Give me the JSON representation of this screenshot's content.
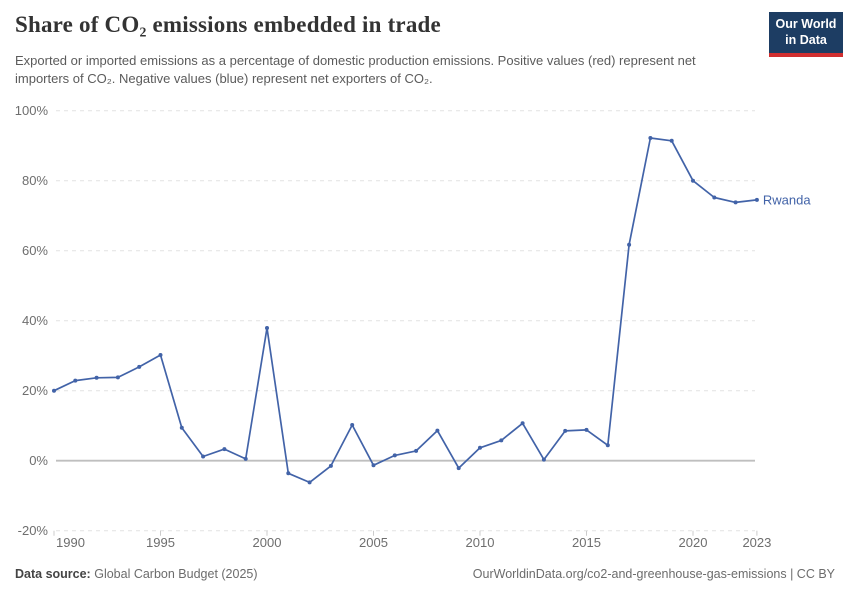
{
  "header": {
    "title": "Share of CO₂ emissions embedded in trade",
    "subtitle": "Exported or imported emissions as a percentage of domestic production emissions. Positive values (red) represent net importers of CO₂. Negative values (blue) represent net exporters of CO₂.",
    "logo_line1": "Our World",
    "logo_line2": "in Data"
  },
  "chart_data": {
    "type": "line",
    "title": "Share of CO₂ emissions embedded in trade",
    "x": [
      1990,
      1991,
      1992,
      1993,
      1994,
      1995,
      1996,
      1997,
      1998,
      1999,
      2000,
      2001,
      2002,
      2003,
      2004,
      2005,
      2006,
      2007,
      2008,
      2009,
      2010,
      2011,
      2012,
      2013,
      2014,
      2015,
      2016,
      2017,
      2018,
      2019,
      2020,
      2021,
      2022,
      2023
    ],
    "series": [
      {
        "name": "Rwanda",
        "values": [
          20.0,
          22.9,
          23.7,
          23.8,
          26.8,
          30.2,
          9.4,
          1.2,
          3.3,
          0.5,
          37.9,
          -3.6,
          -6.2,
          -1.5,
          10.2,
          -1.3,
          1.5,
          2.8,
          8.6,
          -2.1,
          3.7,
          5.8,
          10.7,
          0.3,
          8.5,
          8.8,
          4.4,
          61.7,
          92.2,
          91.4,
          80.0,
          75.2,
          73.8,
          74.5
        ]
      }
    ],
    "xlim": [
      1990,
      2023
    ],
    "ylim": [
      -20,
      100
    ],
    "y_tick_values": [
      100,
      80,
      60,
      40,
      20,
      0,
      -20
    ],
    "y_tick_labels": [
      "100%",
      "80%",
      "60%",
      "40%",
      "20%",
      "0%",
      "-20%"
    ],
    "x_tick_years": [
      1990,
      1995,
      2000,
      2005,
      2010,
      2015,
      2020,
      2023
    ],
    "x_tick_labels": [
      "1990",
      "1995",
      "2000",
      "2005",
      "2010",
      "2015",
      "2020",
      "2023"
    ],
    "grid": "horizontal-dashed",
    "legend": "series-end-label",
    "series_end_label": "Rwanda"
  },
  "footer": {
    "datasource_label": "Data source:",
    "datasource_value": "Global Carbon Budget (2025)",
    "credit": "OurWorldinData.org/co2-and-greenhouse-gas-emissions | CC BY"
  },
  "colors": {
    "line": "#4263a8",
    "series_label": "#4263a8",
    "gridline": "#e2e2e2",
    "zero_line": "#bfbfbf",
    "axis_text": "#6e6e6e",
    "logo_bg": "#1d3d63",
    "logo_red": "#d12f30"
  }
}
